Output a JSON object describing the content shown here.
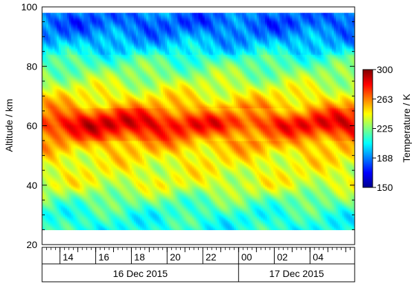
{
  "chart_data": {
    "type": "heatmap",
    "title": "",
    "ylabel": "Altitude / km",
    "ylim": [
      20,
      100
    ],
    "yticks": [
      20,
      40,
      60,
      80,
      100
    ],
    "xlim_hours": [
      13.0,
      30.5
    ],
    "x_hour_ticks": [
      {
        "hour": 14,
        "label": "14"
      },
      {
        "hour": 16,
        "label": "16"
      },
      {
        "hour": 18,
        "label": "18"
      },
      {
        "hour": 20,
        "label": "20"
      },
      {
        "hour": 22,
        "label": "22"
      },
      {
        "hour": 24,
        "label": "00"
      },
      {
        "hour": 26,
        "label": "02"
      },
      {
        "hour": 28,
        "label": "04"
      }
    ],
    "date_labels": [
      {
        "label": "16 Dec 2015",
        "start_hour": 13.0,
        "end_hour": 24.0
      },
      {
        "label": "17 Dec 2015",
        "start_hour": 24.0,
        "end_hour": 30.5
      }
    ],
    "data_altitude_range_km": [
      25,
      98
    ],
    "colorbar": {
      "title": "Temperature / K",
      "range": [
        150,
        300
      ],
      "ticks": [
        "150",
        "188",
        "225",
        "263",
        "300"
      ],
      "colormap": "jet"
    },
    "temperature_profile": {
      "altitude_km": [
        25,
        30,
        35,
        40,
        45,
        50,
        55,
        58,
        60,
        62,
        65,
        68,
        72,
        76,
        80,
        84,
        88,
        92,
        95,
        98
      ],
      "temperature_K": [
        210,
        212,
        222,
        238,
        240,
        245,
        258,
        272,
        280,
        278,
        262,
        250,
        240,
        230,
        222,
        212,
        200,
        190,
        185,
        190
      ]
    }
  }
}
